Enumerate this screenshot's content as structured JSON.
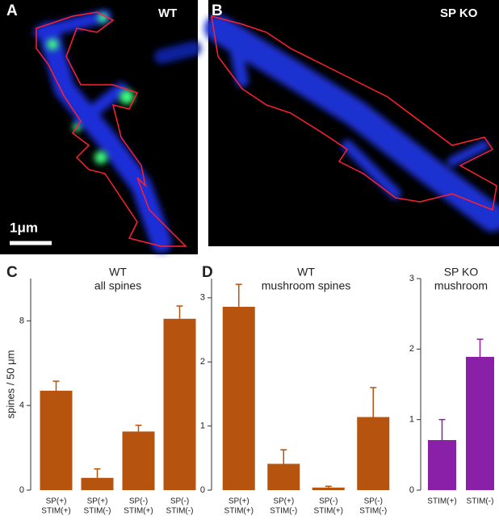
{
  "images": [
    {
      "label": "A",
      "title": "WT",
      "scale_bar": "1μm"
    },
    {
      "label": "B",
      "title": "SP KO"
    }
  ],
  "chart_data": [
    {
      "type": "bar",
      "label": "C",
      "title": "WT",
      "subtitle": "all spines",
      "y_label": "spines / 50 μm",
      "categories": [
        [
          "SP(+)",
          "STIM(+)"
        ],
        [
          "SP(+)",
          "STIM(-)"
        ],
        [
          "SP(-)",
          "STIM(+)"
        ],
        [
          "SP(-)",
          "STIM(-)"
        ]
      ],
      "values": [
        4.7,
        0.58,
        2.77,
        8.1
      ],
      "errors": [
        0.45,
        0.42,
        0.3,
        0.6
      ],
      "color": "#b5530f",
      "ylim": [
        0,
        10
      ],
      "yticks": [
        0,
        4,
        8
      ]
    },
    {
      "type": "bar",
      "label": "D",
      "title": "WT",
      "subtitle": "mushroom spines",
      "categories": [
        [
          "SP(+)",
          "STIM(+)"
        ],
        [
          "SP(+)",
          "STIM(-)"
        ],
        [
          "SP(-)",
          "STIM(+)"
        ],
        [
          "SP(-)",
          "STIM(-)"
        ]
      ],
      "values": [
        2.86,
        0.41,
        0.04,
        1.14
      ],
      "errors": [
        0.35,
        0.22,
        0.02,
        0.46
      ],
      "color": "#b5530f",
      "ylim": [
        0,
        3.3
      ],
      "yticks": [
        0,
        1,
        2,
        3
      ]
    },
    {
      "type": "bar",
      "title": "SP KO",
      "subtitle": "mushroom",
      "categories": [
        [
          "STIM(+)"
        ],
        [
          "STIM(-)"
        ]
      ],
      "values": [
        0.71,
        1.89
      ],
      "errors": [
        0.29,
        0.25
      ],
      "color": "#8a1fa8",
      "ylim": [
        0,
        3
      ],
      "yticks": [
        0,
        1,
        2,
        3
      ]
    }
  ]
}
